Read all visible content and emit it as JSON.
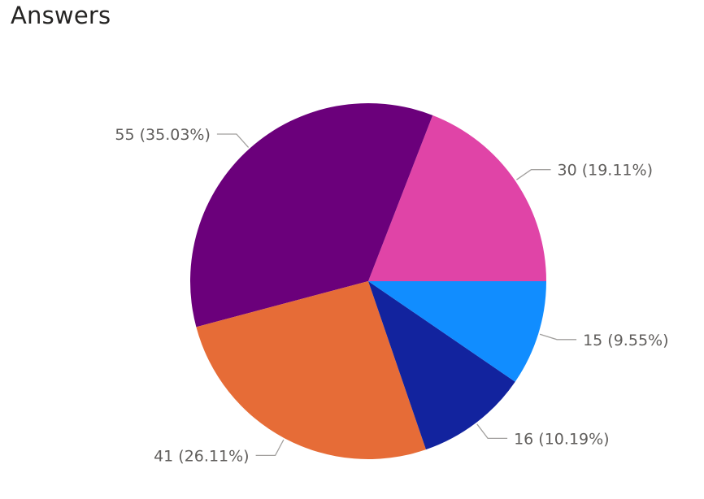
{
  "title": "Answers",
  "chart_data": {
    "type": "pie",
    "title": "Answers",
    "start_angle_deg": 0,
    "direction": "counterclockwise",
    "slices": [
      {
        "value": 30,
        "percent": "19.11%",
        "label": "30 (19.11%)",
        "color": "#E044A7"
      },
      {
        "value": 55,
        "percent": "35.03%",
        "label": "55 (35.03%)",
        "color": "#6B007B"
      },
      {
        "value": 41,
        "percent": "26.11%",
        "label": "41 (26.11%)",
        "color": "#E66C37"
      },
      {
        "value": 16,
        "percent": "10.19%",
        "label": "16 (10.19%)",
        "color": "#12239E"
      },
      {
        "value": 15,
        "percent": "9.55%",
        "label": "15 (9.55%)",
        "color": "#118DFF"
      }
    ]
  }
}
